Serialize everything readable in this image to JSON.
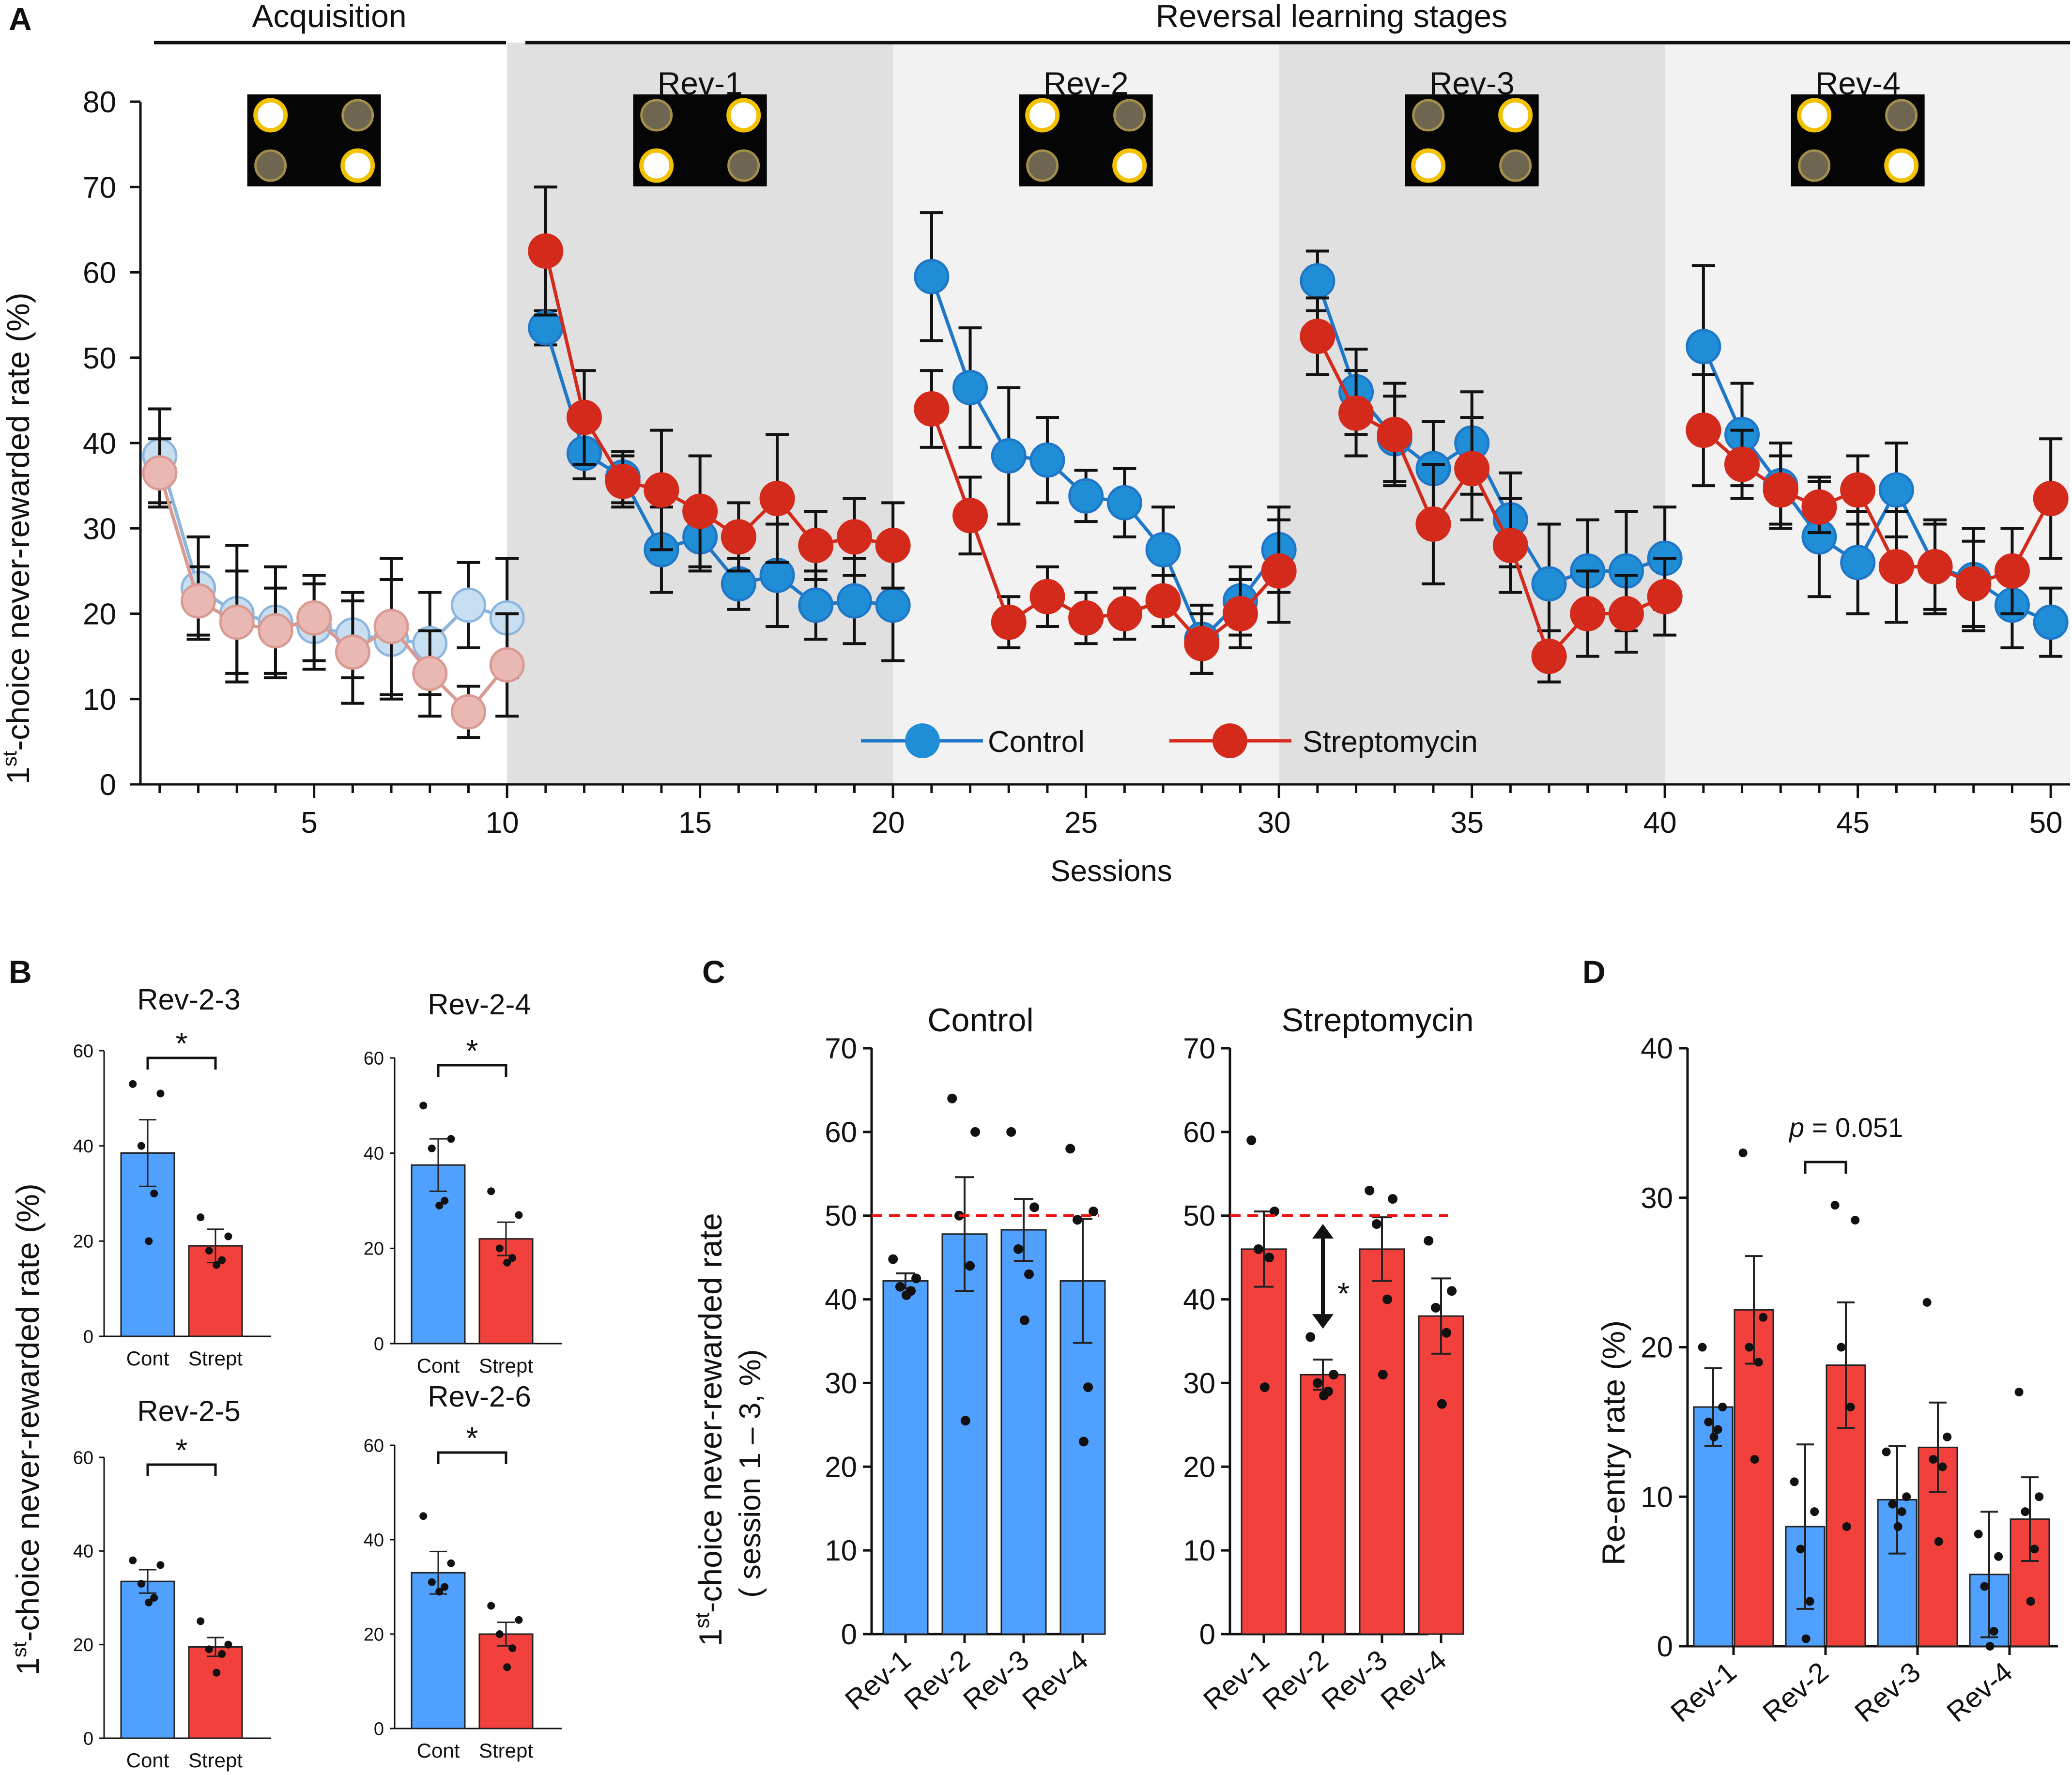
{
  "figure": {
    "colors": {
      "control": "#1f77c8",
      "control_marker": "#1f8ed6",
      "streptomycin": "#d42a1b",
      "control_faded": "#c8dff2",
      "control_faded_edge": "#8fb6dd",
      "strep_faded": "#e9b8b2",
      "strep_faded_edge": "#d99a92",
      "bar_blue": "#4fa0ff",
      "bar_red": "#f2403d",
      "shade_dark": "#e0e0e0",
      "shade_light": "#f2f2f2",
      "chance_line": "#ee1111"
    }
  },
  "panelA": {
    "label": "A",
    "acquisition_label": "Acquisition",
    "reversal_label": "Reversal learning stages",
    "stage_labels": [
      "Rev-1",
      "Rev-2",
      "Rev-3",
      "Rev-4"
    ],
    "legend": {
      "control": "Control",
      "streptomycin": "Streptomycin"
    },
    "icon_patterns": [
      [
        true,
        false,
        false,
        true
      ],
      [
        false,
        true,
        true,
        false
      ],
      [
        true,
        false,
        false,
        true
      ],
      [
        false,
        true,
        true,
        false
      ],
      [
        true,
        false,
        false,
        true
      ]
    ],
    "chart_data": {
      "type": "line",
      "title": "",
      "xlabel": "Sessions",
      "ylabel": "1st-choice never-rewarded rate (%)",
      "ylabel_main": "1",
      "ylabel_sup": "st",
      "ylabel_rest": "-choice never-rewarded rate (%)",
      "xlim": [
        0.5,
        50.5
      ],
      "ylim": [
        0,
        80
      ],
      "xticks": [
        5,
        10,
        15,
        20,
        25,
        30,
        35,
        40,
        45,
        50
      ],
      "yticks": [
        0,
        10,
        20,
        30,
        40,
        50,
        60,
        70,
        80
      ],
      "shaded_ranges": [
        [
          10,
          20
        ],
        [
          20,
          30
        ],
        [
          30,
          40
        ],
        [
          40,
          50.5
        ]
      ],
      "series": [
        {
          "name": "Control",
          "x": [
            1,
            2,
            3,
            4,
            5,
            6,
            7,
            8,
            9,
            10,
            11,
            12,
            13,
            14,
            15,
            16,
            17,
            18,
            19,
            20,
            21,
            22,
            23,
            24,
            25,
            26,
            27,
            28,
            29,
            30,
            31,
            32,
            33,
            34,
            35,
            36,
            37,
            38,
            39,
            40,
            41,
            42,
            43,
            44,
            45,
            46,
            47,
            48,
            49,
            50
          ],
          "values": [
            38.5,
            23,
            20,
            19,
            18.5,
            17.5,
            17,
            16.5,
            21,
            19.5,
            53.5,
            38.8,
            36,
            27.5,
            29,
            23.5,
            24.5,
            21,
            21.5,
            21,
            59.5,
            46.5,
            38.5,
            38,
            33.8,
            33,
            27.5,
            17,
            21.5,
            27.5,
            59,
            46,
            40.5,
            37,
            40,
            31,
            23.5,
            25,
            25,
            26.5,
            51.3,
            41,
            35,
            29,
            26,
            34.5,
            25.5,
            24,
            21,
            19
          ],
          "errors": [
            5.5,
            6,
            8,
            6.5,
            5,
            5,
            7,
            6,
            5,
            7,
            2,
            3,
            3,
            5,
            4,
            3,
            6,
            4,
            5,
            6.5,
            7.5,
            7,
            8,
            5,
            3,
            4,
            5,
            4,
            4,
            5,
            3.5,
            5,
            5,
            5.5,
            6,
            5.5,
            7,
            6,
            7,
            6,
            9.5,
            6,
            5,
            7,
            6,
            5.5,
            5.5,
            6,
            5,
            4
          ],
          "faded_range": [
            1,
            10
          ]
        },
        {
          "name": "Streptomycin",
          "x": [
            1,
            2,
            3,
            4,
            5,
            6,
            7,
            8,
            9,
            10,
            11,
            12,
            13,
            14,
            15,
            16,
            17,
            18,
            19,
            20,
            21,
            22,
            23,
            24,
            25,
            26,
            27,
            28,
            29,
            30,
            31,
            32,
            33,
            34,
            35,
            36,
            37,
            38,
            39,
            40,
            41,
            42,
            43,
            44,
            45,
            46,
            47,
            48,
            49,
            50
          ],
          "values": [
            36.5,
            21.5,
            19,
            18,
            19.5,
            15.5,
            18.5,
            13,
            8.5,
            14,
            62.5,
            43,
            35.5,
            34.5,
            32,
            29,
            33.5,
            28,
            29,
            28,
            44,
            31.5,
            19,
            22,
            19.5,
            20,
            21.5,
            16.5,
            20,
            25,
            52.5,
            43.5,
            41,
            30.5,
            37,
            28,
            15,
            20,
            20,
            22,
            41.5,
            37.5,
            34.5,
            32.5,
            34.5,
            25.5,
            25.5,
            23.5,
            25,
            33.5
          ],
          "errors": [
            4,
            4,
            6,
            5,
            5,
            6,
            8,
            5,
            3,
            6,
            7.5,
            5.5,
            3,
            7,
            6.5,
            4,
            7.5,
            4,
            4.5,
            5,
            4.5,
            4.5,
            3,
            3.5,
            3,
            3,
            3,
            3.5,
            4,
            6,
            4.5,
            5,
            6,
            7,
            6,
            5.5,
            3,
            5,
            4.5,
            4.5,
            6.5,
            4,
            4,
            3,
            4,
            6.5,
            5,
            5,
            5,
            7
          ],
          "faded_range": [
            1,
            10
          ]
        }
      ]
    }
  },
  "panelB": {
    "label": "B",
    "ylabel_main": "1",
    "ylabel_sup": "st",
    "ylabel_rest": "-choice never-rewarded rate (%)",
    "chart_data": [
      {
        "type": "bar",
        "title": "Rev-2-3",
        "categories": [
          "Cont",
          "Strept"
        ],
        "values": [
          38.5,
          19
        ],
        "errors": [
          7,
          3.5
        ],
        "ylim": [
          0,
          60
        ],
        "yticks": [
          0,
          20,
          40,
          60
        ],
        "sig": "*",
        "points": [
          [
            53,
            51,
            40,
            30,
            20
          ],
          [
            25,
            21,
            18,
            16,
            15
          ]
        ]
      },
      {
        "type": "bar",
        "title": "Rev-2-4",
        "categories": [
          "Cont",
          "Strept"
        ],
        "values": [
          37.5,
          22
        ],
        "errors": [
          5.5,
          3.5
        ],
        "ylim": [
          0,
          60
        ],
        "yticks": [
          0,
          20,
          40,
          60
        ],
        "sig": "*",
        "points": [
          [
            50,
            43,
            41,
            30,
            29
          ],
          [
            32,
            27,
            20,
            18,
            17
          ]
        ]
      },
      {
        "type": "bar",
        "title": "Rev-2-5",
        "categories": [
          "Cont",
          "Strept"
        ],
        "values": [
          33.5,
          19.5
        ],
        "errors": [
          2.5,
          2
        ],
        "ylim": [
          0,
          60
        ],
        "yticks": [
          0,
          20,
          40,
          60
        ],
        "sig": "*",
        "points": [
          [
            38,
            37,
            33,
            30,
            29
          ],
          [
            25,
            20,
            19,
            18,
            14
          ]
        ]
      },
      {
        "type": "bar",
        "title": "Rev-2-6",
        "categories": [
          "Cont",
          "Strept"
        ],
        "values": [
          33,
          20
        ],
        "errors": [
          4.5,
          2.5
        ],
        "ylim": [
          0,
          60
        ],
        "yticks": [
          0,
          20,
          40,
          60
        ],
        "sig": "*",
        "points": [
          [
            45,
            35,
            31,
            30,
            29
          ],
          [
            26,
            23,
            20,
            17,
            13
          ]
        ]
      }
    ]
  },
  "panelC": {
    "label": "C",
    "ylabel_line1_main": "1",
    "ylabel_line1_sup": "st",
    "ylabel_line1_rest": "-choice never-rewarded rate",
    "ylabel_line2": "( session 1 – 3, %)",
    "sig": "*",
    "chart_data": [
      {
        "type": "bar",
        "title": "Control",
        "categories": [
          "Rev-1",
          "Rev-2",
          "Rev-3",
          "Rev-4"
        ],
        "values": [
          42.2,
          47.8,
          48.3,
          42.2
        ],
        "errors": [
          0.9,
          6.8,
          3.7,
          7.4
        ],
        "ylim": [
          0,
          70
        ],
        "yticks": [
          0,
          10,
          20,
          30,
          40,
          50,
          60,
          70
        ],
        "chance_line": 50,
        "points": [
          [
            44.8,
            42.5,
            41.5,
            41,
            40.5
          ],
          [
            64,
            60,
            50,
            44,
            25.5
          ],
          [
            60,
            51,
            46,
            43,
            37.5
          ],
          [
            58,
            50.5,
            49.5,
            29.5,
            23
          ]
        ]
      },
      {
        "type": "bar",
        "title": "Streptomycin",
        "categories": [
          "Rev-1",
          "Rev-2",
          "Rev-3",
          "Rev-4"
        ],
        "values": [
          46,
          31,
          46,
          38
        ],
        "errors": [
          4.5,
          1.8,
          3.8,
          4.5
        ],
        "ylim": [
          0,
          70
        ],
        "yticks": [
          0,
          10,
          20,
          30,
          40,
          50,
          60,
          70
        ],
        "chance_line": 50,
        "points": [
          [
            59,
            50.5,
            46,
            45,
            29.5
          ],
          [
            35.5,
            31,
            30,
            29,
            28.5
          ],
          [
            53,
            52,
            49,
            40,
            31
          ],
          [
            47,
            41,
            39,
            36,
            27.5
          ]
        ]
      }
    ]
  },
  "panelD": {
    "label": "D",
    "annotation_p": "p",
    "annotation_rest": " = 0.051",
    "chart_data": {
      "type": "bar",
      "title": "",
      "ylabel": "Re-entry rate (%)",
      "categories": [
        "Rev-1",
        "Rev-2",
        "Rev-3",
        "Rev-4"
      ],
      "ylim": [
        0,
        40
      ],
      "yticks": [
        0,
        10,
        20,
        30,
        40
      ],
      "series": [
        {
          "name": "Control",
          "values": [
            16,
            8,
            9.8,
            4.8
          ],
          "errors": [
            2.6,
            5.5,
            3.6,
            4.2
          ],
          "points": [
            [
              20,
              16,
              15,
              14.5,
              14
            ],
            [
              11,
              9,
              6.5,
              3,
              0.5
            ],
            [
              13,
              10,
              9.5,
              9,
              8
            ],
            [
              7.5,
              6,
              4,
              1,
              0
            ]
          ]
        },
        {
          "name": "Streptomycin",
          "values": [
            22.5,
            18.8,
            13.3,
            8.5
          ],
          "errors": [
            3.6,
            4.2,
            3,
            2.8
          ],
          "points": [
            [
              33,
              22,
              20,
              19,
              12.5
            ],
            [
              29.5,
              28.5,
              20,
              16,
              8
            ],
            [
              23,
              14,
              12.5,
              12,
              7
            ],
            [
              17,
              10,
              9,
              6.5,
              3
            ]
          ]
        }
      ]
    }
  }
}
